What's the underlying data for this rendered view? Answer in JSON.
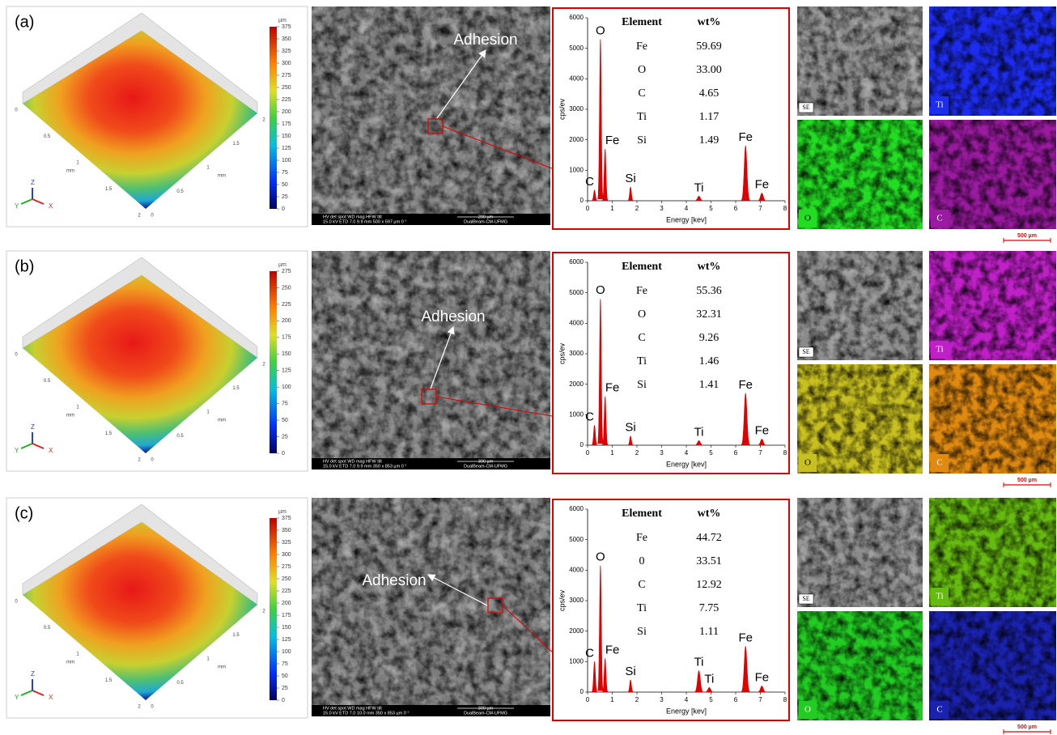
{
  "panels": [
    {
      "label": "(a)",
      "profile": {
        "unit": "µm",
        "colorbar_lim": [
          0,
          375
        ],
        "colorbar_ticks": [
          0,
          25,
          50,
          75,
          100,
          125,
          150,
          175,
          200,
          225,
          250,
          275,
          300,
          325,
          350,
          375
        ],
        "axis_label": "mm",
        "x_ticks": [
          0,
          0.5,
          1,
          1.5,
          2
        ],
        "y_ticks": [
          0,
          0.5,
          1,
          1.5,
          2
        ],
        "triad": [
          "X",
          "Y",
          "Z"
        ]
      },
      "sem": {
        "annotation": "Adhesion",
        "info_header": "HV   det   spot   WD   mag   HFW   tilt",
        "info_values": "15.0 kV ETD 7.0 9.9 mm 500 x 597 µm 0 °",
        "scale": "200 µm",
        "facility": "DualBeam-CM-UFMG"
      },
      "eds": {
        "x_label": "Energy [kev]",
        "y_label": "cps/ev",
        "xlim": [
          0,
          8
        ],
        "ylim": [
          0,
          6000
        ],
        "xticks": [
          0,
          1,
          2,
          3,
          4,
          5,
          6,
          7,
          8
        ],
        "yticks": [
          0,
          1000,
          2000,
          3000,
          4000,
          5000,
          6000
        ],
        "color": "#e00000",
        "peaks": [
          {
            "label": "C",
            "x": 0.28,
            "y": 350
          },
          {
            "label": "O",
            "x": 0.52,
            "y": 5300
          },
          {
            "label": "Fe",
            "x": 0.71,
            "y": 1700
          },
          {
            "label": "Si",
            "x": 1.74,
            "y": 450
          },
          {
            "label": "Ti",
            "x": 4.51,
            "y": 150
          },
          {
            "label": "Fe",
            "x": 6.4,
            "y": 1800
          },
          {
            "label": "Fe",
            "x": 7.06,
            "y": 250
          }
        ],
        "table": {
          "header": [
            "Element",
            "wt%"
          ],
          "rows": [
            [
              "Fe",
              "59.69"
            ],
            [
              "O",
              "33.00"
            ],
            [
              "C",
              "4.65"
            ],
            [
              "Ti",
              "1.17"
            ],
            [
              "Si",
              "1.49"
            ]
          ]
        }
      },
      "maps": [
        {
          "label": "SE",
          "color": "#8a8a8a"
        },
        {
          "label": "Ti",
          "color": "#1c2cf0"
        },
        {
          "label": "O",
          "color": "#22dd22"
        },
        {
          "label": "C",
          "color": "#9a1aa0"
        }
      ],
      "map_scale": "500 µm"
    },
    {
      "label": "(b)",
      "profile": {
        "unit": "µm",
        "colorbar_lim": [
          0,
          275
        ],
        "colorbar_ticks": [
          0,
          25,
          50,
          75,
          100,
          125,
          150,
          175,
          200,
          225,
          250,
          275
        ],
        "axis_label": "mm",
        "x_ticks": [
          0,
          0.5,
          1,
          1.5,
          2
        ],
        "y_ticks": [
          0,
          0.5,
          1,
          1.5,
          2
        ],
        "triad": [
          "X",
          "Y",
          "Z"
        ]
      },
      "sem": {
        "annotation": "Adhesion",
        "info_header": "HV   det   spot   WD   mag   HFW   tilt",
        "info_values": "15.0 kV ETD 7.0 9.9 mm 350 x 853 µm 0 °",
        "scale": "300 µm",
        "facility": "DualBeam-CM-UFMG"
      },
      "eds": {
        "x_label": "Energy [kev]",
        "y_label": "cps/ev",
        "xlim": [
          0,
          8
        ],
        "ylim": [
          0,
          6000
        ],
        "xticks": [
          0,
          1,
          2,
          3,
          4,
          5,
          6,
          7,
          8
        ],
        "yticks": [
          0,
          1000,
          2000,
          3000,
          4000,
          5000,
          6000
        ],
        "color": "#e00000",
        "peaks": [
          {
            "label": "C",
            "x": 0.28,
            "y": 650
          },
          {
            "label": "O",
            "x": 0.52,
            "y": 4800
          },
          {
            "label": "Fe",
            "x": 0.71,
            "y": 1600
          },
          {
            "label": "Si",
            "x": 1.74,
            "y": 300
          },
          {
            "label": "Ti",
            "x": 4.51,
            "y": 150
          },
          {
            "label": "Fe",
            "x": 6.4,
            "y": 1700
          },
          {
            "label": "Fe",
            "x": 7.06,
            "y": 200
          }
        ],
        "table": {
          "header": [
            "Element",
            "wt%"
          ],
          "rows": [
            [
              "Fe",
              "55.36"
            ],
            [
              "O",
              "32.31"
            ],
            [
              "C",
              "9.26"
            ],
            [
              "Ti",
              "1.46"
            ],
            [
              "Si",
              "1.41"
            ]
          ]
        }
      },
      "maps": [
        {
          "label": "SE",
          "color": "#8a8a8a"
        },
        {
          "label": "Ti",
          "color": "#c020c8"
        },
        {
          "label": "O",
          "color": "#c8c020"
        },
        {
          "label": "C",
          "color": "#e08a10"
        }
      ],
      "map_scale": "500 µm"
    },
    {
      "label": "(c)",
      "profile": {
        "unit": "µm",
        "colorbar_lim": [
          0,
          375
        ],
        "colorbar_ticks": [
          0,
          25,
          50,
          75,
          100,
          125,
          150,
          175,
          200,
          225,
          250,
          275,
          300,
          325,
          350,
          375
        ],
        "axis_label": "mm",
        "x_ticks": [
          0,
          0.5,
          1,
          1.5,
          2
        ],
        "y_ticks": [
          0,
          0.5,
          1,
          1.5,
          2
        ],
        "triad": [
          "X",
          "Y",
          "Z"
        ]
      },
      "sem": {
        "annotation": "Adhesion",
        "info_header": "HV   det   spot   WD   mag   HFW   tilt",
        "info_values": "15.0 kV ETD 7.0 10.0 mm 350 x 853 µm 0 °",
        "scale": "300 µm",
        "facility": "DualBeam-CM-UFMG"
      },
      "eds": {
        "x_label": "Energy [kev]",
        "y_label": "cps/ev",
        "xlim": [
          0,
          8
        ],
        "ylim": [
          0,
          6000
        ],
        "xticks": [
          0,
          1,
          2,
          3,
          4,
          5,
          6,
          7,
          8
        ],
        "yticks": [
          0,
          1000,
          2000,
          3000,
          4000,
          5000,
          6000
        ],
        "color": "#e00000",
        "peaks": [
          {
            "label": "C",
            "x": 0.28,
            "y": 1000
          },
          {
            "label": "O",
            "x": 0.52,
            "y": 4150
          },
          {
            "label": "Fe",
            "x": 0.71,
            "y": 1100
          },
          {
            "label": "Si",
            "x": 1.74,
            "y": 400
          },
          {
            "label": "Ti",
            "x": 4.51,
            "y": 700
          },
          {
            "label": "Ti",
            "x": 4.93,
            "y": 150
          },
          {
            "label": "Fe",
            "x": 6.4,
            "y": 1500
          },
          {
            "label": "Fe",
            "x": 7.06,
            "y": 200
          }
        ],
        "table": {
          "header": [
            "Element",
            "wt%"
          ],
          "rows": [
            [
              "Fe",
              "44.72"
            ],
            [
              "0",
              "33.51"
            ],
            [
              "C",
              "12.92"
            ],
            [
              "Ti",
              "7.75"
            ],
            [
              "Si",
              "1.11"
            ]
          ]
        }
      },
      "maps": [
        {
          "label": "SE",
          "color": "#8a8a8a"
        },
        {
          "label": "Ti",
          "color": "#66bb10"
        },
        {
          "label": "O",
          "color": "#22cc22"
        },
        {
          "label": "C",
          "color": "#1a22b0"
        }
      ],
      "map_scale": "500 µm"
    }
  ]
}
